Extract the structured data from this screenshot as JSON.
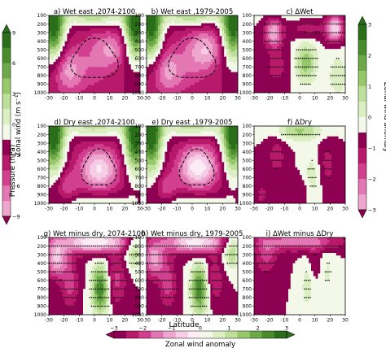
{
  "chart_data": {
    "type": "heatmap",
    "colorbar_levels": [
      -9,
      -7.5,
      -6,
      -4.5,
      -3,
      -1.5,
      0,
      1.5,
      3,
      4.5,
      6,
      7.5,
      9
    ],
    "colors": {
      "neg": [
        "#8e0152",
        "#b8196b",
        "#d23f8f",
        "#e377b3",
        "#eea6cf",
        "#f6cde6",
        "#fcecf4"
      ],
      "pos": [
        "#f3f8e9",
        "#dcefc3",
        "#bfe09a",
        "#97c96b",
        "#6da84b",
        "#488c2e",
        "#2b6e1a"
      ],
      "stipple": "#000000",
      "contour": "#000000"
    },
    "x_axis": {
      "label": "Latitude",
      "ticks": [
        -30,
        -20,
        -10,
        0,
        10,
        20,
        30
      ],
      "range": [
        -30,
        30
      ]
    },
    "y_axis": {
      "label": "Pressure (hPa)",
      "ticks": [
        100,
        200,
        300,
        400,
        500,
        600,
        700,
        800,
        900,
        1000
      ],
      "range": [
        1000,
        100
      ]
    },
    "left_colorbar": {
      "label": "Zonal wind (m s⁻¹)",
      "ticks": [
        "9",
        "6",
        "3",
        "0",
        "−3",
        "−6",
        "−9"
      ]
    },
    "right_colorbar": {
      "label": "Zonal wind anomaly",
      "ticks": [
        "3",
        "2",
        "1",
        "0",
        "−1",
        "−2",
        "−3"
      ]
    },
    "bottom_colorbar": {
      "label": "Zonal wind anomaly",
      "ticks": [
        "−3",
        "−2",
        "−1",
        "0",
        "1",
        "2",
        "3"
      ]
    },
    "panels": [
      {
        "id": "a",
        "title": "a) Wet east ,2074-2100"
      },
      {
        "id": "b",
        "title": "b) Wet east ,1979-2005"
      },
      {
        "id": "c",
        "title": "c) ΔWet"
      },
      {
        "id": "d",
        "title": "d) Dry east ,2074-2100"
      },
      {
        "id": "e",
        "title": "e) Dry east ,1979-2005"
      },
      {
        "id": "f",
        "title": "f) ΔDry"
      },
      {
        "id": "g",
        "title": "g) Wet minus dry, 2074-2100"
      },
      {
        "id": "h",
        "title": "h) Wet minus dry, 1979-2005"
      },
      {
        "id": "i",
        "title": "i) ΔWet minus ΔDry"
      }
    ]
  }
}
